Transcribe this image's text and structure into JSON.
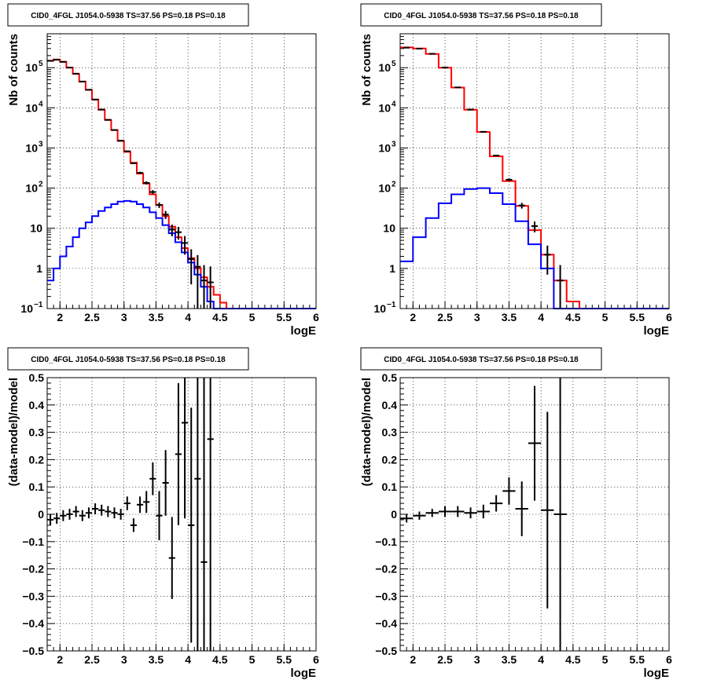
{
  "chart_data": [
    {
      "type": "line",
      "title": "CID0_4FGL J1054.0-5938 TS=37.56 PS=0.18 PS=0.18",
      "xlabel": "logE",
      "ylabel": "Nb of counts",
      "log_y": true,
      "xlim": [
        1.8,
        6.0
      ],
      "ylim": [
        0.1,
        700000
      ],
      "grid": true,
      "x_ticks": [
        "2",
        "2.5",
        "3",
        "3.5",
        "4",
        "4.5",
        "5",
        "5.5",
        "6"
      ],
      "y_ticks": [
        {
          "value": 0.1,
          "base": "10",
          "exp": "−1"
        },
        {
          "value": 1,
          "label": "1"
        },
        {
          "value": 10,
          "label": "10"
        },
        {
          "value": 100,
          "base": "10",
          "exp": "2"
        },
        {
          "value": 1000,
          "base": "10",
          "exp": "3"
        },
        {
          "value": 10000,
          "base": "10",
          "exp": "4"
        },
        {
          "value": 100000,
          "base": "10",
          "exp": "5"
        }
      ],
      "bin_edges": [
        1.8,
        1.9,
        2.0,
        2.1,
        2.2,
        2.3,
        2.4,
        2.5,
        2.6,
        2.7,
        2.8,
        2.9,
        3.0,
        3.1,
        3.2,
        3.3,
        3.4,
        3.5,
        3.6,
        3.7,
        3.8,
        3.9,
        4.0,
        4.1,
        4.2,
        4.3,
        4.4,
        4.5,
        4.6,
        4.7,
        4.8,
        4.9,
        5.0,
        5.1,
        5.2,
        5.3,
        5.4,
        5.5,
        5.6,
        5.7,
        5.8,
        5.9,
        6.0
      ],
      "series": [
        {
          "color": "#ff0000",
          "values": [
            150000,
            160000,
            140000,
            100000,
            70000,
            45000,
            28000,
            16000,
            9000,
            5000,
            2800,
            1500,
            800,
            430,
            230,
            130,
            70,
            38,
            20,
            11,
            6,
            3.2,
            1.8,
            1.0,
            0.6,
            0.35,
            0.22,
            0.14,
            0.1,
            0.1,
            0.1,
            0.1,
            0.1,
            0.1,
            0.1,
            0.1,
            0.1,
            0.1,
            0.1,
            0.1,
            0.1,
            0.1
          ]
        },
        {
          "color": "#0000ff",
          "values": [
            0.5,
            1,
            2,
            3.5,
            6,
            10,
            14,
            20,
            27,
            33,
            40,
            46,
            48,
            46,
            40,
            33,
            25,
            18,
            12,
            7.5,
            4.5,
            2.5,
            1.4,
            0.7,
            0.35,
            0.15,
            0.1,
            0.1,
            0.1,
            0.1,
            0.1,
            0.1,
            0.1,
            0.1,
            0.1,
            0.1,
            0.1,
            0.1,
            0.1,
            0.1,
            0.1,
            0.1
          ]
        }
      ],
      "points": [
        {
          "x": 1.85,
          "y": 148000,
          "ey": 450
        },
        {
          "x": 1.95,
          "y": 158000,
          "ey": 450
        },
        {
          "x": 2.05,
          "y": 140000,
          "ey": 400
        },
        {
          "x": 2.15,
          "y": 101000,
          "ey": 350
        },
        {
          "x": 2.25,
          "y": 71000,
          "ey": 300
        },
        {
          "x": 2.35,
          "y": 45000,
          "ey": 230
        },
        {
          "x": 2.45,
          "y": 28200,
          "ey": 180
        },
        {
          "x": 2.55,
          "y": 16100,
          "ey": 130
        },
        {
          "x": 2.65,
          "y": 9050,
          "ey": 95
        },
        {
          "x": 2.75,
          "y": 5020,
          "ey": 70
        },
        {
          "x": 2.85,
          "y": 2800,
          "ey": 55
        },
        {
          "x": 2.95,
          "y": 1520,
          "ey": 40
        },
        {
          "x": 3.05,
          "y": 830,
          "ey": 29
        },
        {
          "x": 3.15,
          "y": 415,
          "ey": 20
        },
        {
          "x": 3.25,
          "y": 240,
          "ey": 16
        },
        {
          "x": 3.35,
          "y": 135,
          "ey": 12
        },
        {
          "x": 3.45,
          "y": 80,
          "ey": 9
        },
        {
          "x": 3.55,
          "y": 38,
          "ey": 6
        },
        {
          "x": 3.65,
          "y": 22,
          "ey": 5
        },
        {
          "x": 3.75,
          "y": 9.3,
          "ey": 3
        },
        {
          "x": 3.85,
          "y": 8,
          "ey": 2.8
        },
        {
          "x": 3.95,
          "y": 4.3,
          "ey": 2.1
        },
        {
          "x": 4.05,
          "y": 1.7,
          "ey": 1.3
        },
        {
          "x": 4.15,
          "y": 1.1,
          "ey": 1.05
        },
        {
          "x": 4.25,
          "y": 0.5,
          "ey": 0.71
        },
        {
          "x": 4.35,
          "y": 0.45,
          "ey": 0.67
        }
      ]
    },
    {
      "type": "line",
      "title": "CID0_4FGL J1054.0-5938 TS=37.56 PS=0.18 PS=0.18",
      "xlabel": "logE",
      "ylabel": "Nb of counts",
      "log_y": true,
      "xlim": [
        1.8,
        6.0
      ],
      "ylim": [
        0.1,
        700000
      ],
      "grid": true,
      "x_ticks": [
        "2",
        "2.5",
        "3",
        "3.5",
        "4",
        "4.5",
        "5",
        "5.5",
        "6"
      ],
      "y_ticks": [
        {
          "value": 0.1,
          "base": "10",
          "exp": "−1"
        },
        {
          "value": 1,
          "label": "1"
        },
        {
          "value": 10,
          "label": "10"
        },
        {
          "value": 100,
          "base": "10",
          "exp": "2"
        },
        {
          "value": 1000,
          "base": "10",
          "exp": "3"
        },
        {
          "value": 10000,
          "base": "10",
          "exp": "4"
        },
        {
          "value": 100000,
          "base": "10",
          "exp": "5"
        }
      ],
      "bin_edges": [
        1.8,
        2.0,
        2.2,
        2.4,
        2.6,
        2.8,
        3.0,
        3.2,
        3.4,
        3.6,
        3.8,
        4.0,
        4.2,
        4.4,
        4.6,
        4.8,
        5.0,
        5.2,
        5.4,
        5.6,
        5.8,
        6.0
      ],
      "series": [
        {
          "color": "#ff0000",
          "values": [
            320000,
            300000,
            220000,
            100000,
            32000,
            9000,
            2500,
            620,
            150,
            36,
            9,
            2.2,
            0.5,
            0.15,
            0.1,
            0.1,
            0.1,
            0.1,
            0.1,
            0.1,
            0.1
          ]
        },
        {
          "color": "#0000ff",
          "values": [
            1.5,
            6,
            18,
            42,
            70,
            95,
            100,
            75,
            40,
            15,
            4,
            1,
            0.1,
            0.1,
            0.1,
            0.1,
            0.1,
            0.1,
            0.1,
            0.1,
            0.1
          ]
        }
      ],
      "points": [
        {
          "x": 1.9,
          "y": 315000,
          "ey": 560
        },
        {
          "x": 2.1,
          "y": 298000,
          "ey": 550
        },
        {
          "x": 2.3,
          "y": 222000,
          "ey": 470
        },
        {
          "x": 2.5,
          "y": 101000,
          "ey": 320
        },
        {
          "x": 2.7,
          "y": 32300,
          "ey": 180
        },
        {
          "x": 2.9,
          "y": 9050,
          "ey": 95
        },
        {
          "x": 3.1,
          "y": 2530,
          "ey": 50
        },
        {
          "x": 3.3,
          "y": 645,
          "ey": 25
        },
        {
          "x": 3.5,
          "y": 162,
          "ey": 13
        },
        {
          "x": 3.7,
          "y": 37,
          "ey": 6
        },
        {
          "x": 3.9,
          "y": 11.3,
          "ey": 3.4
        },
        {
          "x": 4.1,
          "y": 2.2,
          "ey": 1.5
        },
        {
          "x": 4.3,
          "y": 0.5,
          "ey": 0.71
        }
      ]
    },
    {
      "type": "scatter",
      "title": "CID0_4FGL J1054.0-5938 TS=37.56 PS=0.18 PS=0.18",
      "xlabel": "logE",
      "ylabel": "(data-model)/model",
      "xlim": [
        1.8,
        6.0
      ],
      "ylim": [
        -0.5,
        0.5
      ],
      "grid": true,
      "x_ticks": [
        "2",
        "2.5",
        "3",
        "3.5",
        "4",
        "4.5",
        "5",
        "5.5",
        "6"
      ],
      "y_ticks": [
        "−0.5",
        "−0.4",
        "−0.3",
        "−0.2",
        "−0.1",
        "0",
        "0.1",
        "0.2",
        "0.3",
        "0.4",
        "0.5"
      ],
      "y_tick_values": [
        -0.5,
        -0.4,
        -0.3,
        -0.2,
        -0.1,
        0,
        0.1,
        0.2,
        0.3,
        0.4,
        0.5
      ],
      "points": [
        {
          "x": 1.85,
          "xerr": 0.05,
          "y": -0.02,
          "ey": 0.02
        },
        {
          "x": 1.95,
          "xerr": 0.05,
          "y": -0.015,
          "ey": 0.02
        },
        {
          "x": 2.05,
          "xerr": 0.05,
          "y": -0.005,
          "ey": 0.02
        },
        {
          "x": 2.15,
          "xerr": 0.05,
          "y": 0.0,
          "ey": 0.02
        },
        {
          "x": 2.25,
          "xerr": 0.05,
          "y": 0.01,
          "ey": 0.02
        },
        {
          "x": 2.35,
          "xerr": 0.05,
          "y": -0.005,
          "ey": 0.02
        },
        {
          "x": 2.45,
          "xerr": 0.05,
          "y": 0.005,
          "ey": 0.02
        },
        {
          "x": 2.55,
          "xerr": 0.05,
          "y": 0.02,
          "ey": 0.02
        },
        {
          "x": 2.65,
          "xerr": 0.05,
          "y": 0.015,
          "ey": 0.02
        },
        {
          "x": 2.75,
          "xerr": 0.05,
          "y": 0.01,
          "ey": 0.02
        },
        {
          "x": 2.85,
          "xerr": 0.05,
          "y": 0.005,
          "ey": 0.02
        },
        {
          "x": 2.95,
          "xerr": 0.05,
          "y": 0.0,
          "ey": 0.02
        },
        {
          "x": 3.05,
          "xerr": 0.05,
          "y": 0.04,
          "ey": 0.025
        },
        {
          "x": 3.15,
          "xerr": 0.05,
          "y": -0.04,
          "ey": 0.025
        },
        {
          "x": 3.25,
          "xerr": 0.05,
          "y": 0.035,
          "ey": 0.03
        },
        {
          "x": 3.35,
          "xerr": 0.05,
          "y": 0.045,
          "ey": 0.04
        },
        {
          "x": 3.45,
          "xerr": 0.05,
          "y": 0.13,
          "ey": 0.06
        },
        {
          "x": 3.55,
          "xerr": 0.05,
          "y": -0.005,
          "ey": 0.09
        },
        {
          "x": 3.65,
          "xerr": 0.05,
          "y": 0.115,
          "ey": 0.12
        },
        {
          "x": 3.75,
          "xerr": 0.05,
          "y": -0.16,
          "ey": 0.15
        },
        {
          "x": 3.85,
          "xerr": 0.05,
          "y": 0.22,
          "ey": 0.26
        },
        {
          "x": 3.95,
          "xerr": 0.05,
          "y": 0.335,
          "ey": 0.35
        },
        {
          "x": 4.05,
          "xerr": 0.05,
          "y": -0.04,
          "ey": 0.43
        },
        {
          "x": 4.15,
          "xerr": 0.05,
          "y": 0.13,
          "ey": 0.7
        },
        {
          "x": 4.25,
          "xerr": 0.05,
          "y": -0.175,
          "ey": 0.9
        },
        {
          "x": 4.35,
          "xerr": 0.05,
          "y": 0.275,
          "ey": 1.0
        }
      ]
    },
    {
      "type": "scatter",
      "title": "CID0_4FGL J1054.0-5938 TS=37.56 PS=0.18 PS=0.18",
      "xlabel": "logE",
      "ylabel": "(data-model)/model",
      "xlim": [
        1.8,
        6.0
      ],
      "ylim": [
        -0.5,
        0.5
      ],
      "grid": true,
      "x_ticks": [
        "2",
        "2.5",
        "3",
        "3.5",
        "4",
        "4.5",
        "5",
        "5.5",
        "6"
      ],
      "y_ticks": [
        "−0.5",
        "−0.4",
        "−0.3",
        "−0.2",
        "−0.1",
        "0",
        "0.1",
        "0.2",
        "0.3",
        "0.4",
        "0.5"
      ],
      "y_tick_values": [
        -0.5,
        -0.4,
        -0.3,
        -0.2,
        -0.1,
        0,
        0.1,
        0.2,
        0.3,
        0.4,
        0.5
      ],
      "points": [
        {
          "x": 1.9,
          "xerr": 0.1,
          "y": -0.015,
          "ey": 0.015
        },
        {
          "x": 2.1,
          "xerr": 0.1,
          "y": -0.005,
          "ey": 0.015
        },
        {
          "x": 2.3,
          "xerr": 0.1,
          "y": 0.005,
          "ey": 0.015
        },
        {
          "x": 2.5,
          "xerr": 0.1,
          "y": 0.01,
          "ey": 0.02
        },
        {
          "x": 2.7,
          "xerr": 0.1,
          "y": 0.01,
          "ey": 0.02
        },
        {
          "x": 2.9,
          "xerr": 0.1,
          "y": 0.005,
          "ey": 0.02
        },
        {
          "x": 3.1,
          "xerr": 0.1,
          "y": 0.01,
          "ey": 0.025
        },
        {
          "x": 3.3,
          "xerr": 0.1,
          "y": 0.04,
          "ey": 0.03
        },
        {
          "x": 3.5,
          "xerr": 0.1,
          "y": 0.085,
          "ey": 0.05
        },
        {
          "x": 3.7,
          "xerr": 0.1,
          "y": 0.02,
          "ey": 0.1
        },
        {
          "x": 3.9,
          "xerr": 0.1,
          "y": 0.26,
          "ey": 0.21
        },
        {
          "x": 4.1,
          "xerr": 0.1,
          "y": 0.015,
          "ey": 0.36
        },
        {
          "x": 4.3,
          "xerr": 0.1,
          "y": 0.0,
          "ey": 1.0
        }
      ]
    }
  ]
}
